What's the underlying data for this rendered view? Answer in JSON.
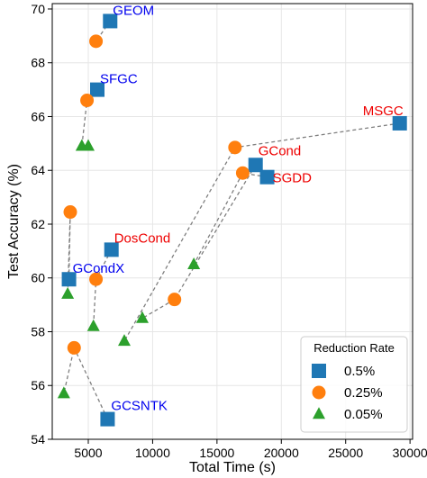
{
  "chart_data": {
    "type": "scatter",
    "xlabel": "Total Time (s)",
    "ylabel": "Test Accuracy (%)",
    "xlim": [
      2200,
      30200
    ],
    "ylim": [
      54,
      70.2
    ],
    "xticks": [
      5000,
      10000,
      15000,
      20000,
      25000,
      30000
    ],
    "yticks": [
      54,
      56,
      58,
      60,
      62,
      64,
      66,
      68,
      70
    ],
    "grid": true,
    "legend": {
      "title": "Reduction Rate",
      "placement": "bottom-right",
      "entries": [
        {
          "label": "0.5%",
          "marker": "square",
          "color": "#1f77b4"
        },
        {
          "label": "0.25%",
          "marker": "circle",
          "color": "#ff7f0e"
        },
        {
          "label": "0.05%",
          "marker": "triangle",
          "color": "#2ca02c"
        }
      ]
    },
    "series": [
      {
        "key": "0.5%",
        "marker": "square",
        "color": "#1f77b4",
        "points": [
          [
            6700,
            69.55
          ],
          [
            5700,
            67.0
          ],
          [
            29200,
            65.75
          ],
          [
            18000,
            64.2
          ],
          [
            18900,
            63.75
          ],
          [
            6800,
            61.05
          ],
          [
            3500,
            59.95
          ],
          [
            6500,
            54.75
          ]
        ]
      },
      {
        "key": "0.25%",
        "marker": "circle",
        "color": "#ff7f0e",
        "points": [
          [
            5600,
            68.8
          ],
          [
            4900,
            66.6
          ],
          [
            16400,
            64.85
          ],
          [
            17000,
            63.9
          ],
          [
            3600,
            62.45
          ],
          [
            5600,
            59.95
          ],
          [
            11700,
            59.2
          ],
          [
            3900,
            57.4
          ]
        ]
      },
      {
        "key": "0.05%",
        "marker": "triangle",
        "color": "#2ca02c",
        "points": [
          [
            4500,
            64.9
          ],
          [
            5000,
            64.9
          ],
          [
            13200,
            60.5
          ],
          [
            3400,
            59.4
          ],
          [
            9200,
            58.5
          ],
          [
            5400,
            58.2
          ],
          [
            7800,
            57.65
          ],
          [
            3100,
            55.7
          ]
        ]
      }
    ],
    "methods": [
      {
        "name": "GEOM",
        "label_color": "#0000ee",
        "x": [
          6700,
          5600
        ],
        "y": [
          69.55,
          68.8
        ]
      },
      {
        "name": "SFGC",
        "label_color": "#0000ee",
        "x": [
          5700,
          4900,
          4500,
          5000
        ],
        "y": [
          67.0,
          66.6,
          64.9,
          64.9
        ]
      },
      {
        "name": "MSGC",
        "label_color": "#ee0000",
        "x": [
          29200,
          16400,
          7800
        ],
        "y": [
          65.75,
          64.85,
          57.65
        ]
      },
      {
        "name": "GCond",
        "label_color": "#ee0000",
        "x": [
          18000,
          11700,
          9200
        ],
        "y": [
          64.2,
          59.2,
          58.5
        ]
      },
      {
        "name": "SGDD",
        "label_color": "#ee0000",
        "x": [
          18900,
          17000,
          13200
        ],
        "y": [
          63.75,
          63.9,
          60.5
        ]
      },
      {
        "name": "DosCond",
        "label_color": "#ee0000",
        "x": [
          6800,
          5600,
          5400
        ],
        "y": [
          61.05,
          59.95,
          58.2
        ]
      },
      {
        "name": "GCondX",
        "label_color": "#0000ee",
        "x": [
          3500,
          3600,
          3400
        ],
        "y": [
          59.95,
          62.45,
          59.4
        ]
      },
      {
        "name": "GCSNTK",
        "label_color": "#0000ee",
        "x": [
          6500,
          3900,
          3100
        ],
        "y": [
          54.75,
          57.4,
          55.7
        ]
      }
    ]
  }
}
